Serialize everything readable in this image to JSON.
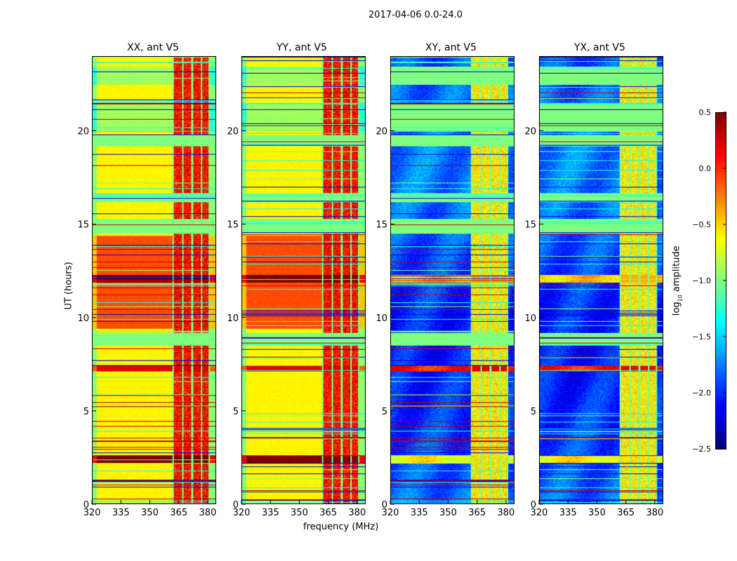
{
  "chart_data": {
    "type": "heatmap",
    "title": "2017-04-06 0.0-24.0",
    "xlabel": "frequency (MHz)",
    "ylabel": "UT (hours)",
    "xlim": [
      320,
      384.4
    ],
    "ylim": [
      0,
      24
    ],
    "xticks": [
      "320",
      "335",
      "350",
      "365",
      "380"
    ],
    "yticks": [
      "0",
      "5",
      "10",
      "15",
      "20"
    ],
    "panels": [
      {
        "title": "XX, ant V5",
        "kind": "parallel"
      },
      {
        "title": "YY, ant V5",
        "kind": "parallel"
      },
      {
        "title": "XY, ant V5",
        "kind": "cross"
      },
      {
        "title": "YX, ant V5",
        "kind": "cross"
      }
    ],
    "colorbar": {
      "label": "log10 amplitude",
      "label_main": "log",
      "label_sub": "10",
      "label_rest": " amplitude",
      "range": [
        -2.5,
        0.5
      ],
      "ticks": [
        "0.5",
        "0.0",
        "−0.5",
        "−1.0",
        "−1.5",
        "−2.0",
        "−2.5"
      ],
      "colormap": "jet"
    },
    "rfi_band_mhz": [
      362,
      381
    ],
    "rfi_channels_mhz": [
      362,
      367,
      372,
      377,
      381
    ],
    "levels": {
      "parallel_background": -0.6,
      "parallel_rfi": 0.1,
      "cross_background": -1.9,
      "cross_rfi": -0.6,
      "flagged": -1.0
    },
    "time_segments": [
      {
        "t0": 2.2,
        "t1": 2.6,
        "parallel": 0.5,
        "cross": -0.6
      },
      {
        "t0": 7.1,
        "t1": 7.4,
        "parallel": 0.2,
        "cross": 0.2
      },
      {
        "t0": 8.5,
        "t1": 9.2,
        "parallel": -1.0,
        "cross": -1.0
      },
      {
        "t0": 9.4,
        "t1": 14.4,
        "parallel": -0.1,
        "cross": -1.9
      },
      {
        "t0": 11.9,
        "t1": 12.3,
        "parallel": 0.5,
        "cross": -0.4
      },
      {
        "t0": 14.5,
        "t1": 15.3,
        "parallel": -1.0,
        "cross": -1.0
      },
      {
        "t0": 16.2,
        "t1": 16.7,
        "parallel": -1.0,
        "cross": -1.0
      },
      {
        "t0": 19.2,
        "t1": 19.8,
        "parallel": -1.0,
        "cross": -1.0
      },
      {
        "t0": 20.0,
        "t1": 21.5,
        "parallel": -0.9,
        "cross": -1.0
      },
      {
        "t0": 22.5,
        "t1": 23.5,
        "parallel": -0.9,
        "cross": -1.0
      }
    ]
  }
}
